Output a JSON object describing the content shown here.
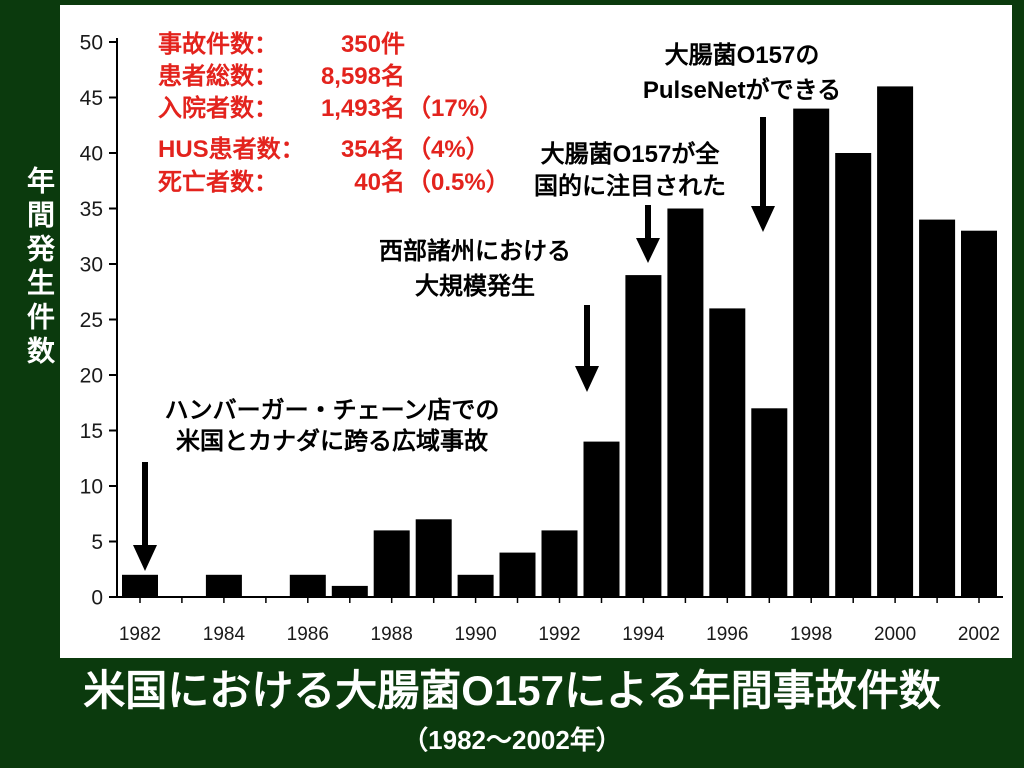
{
  "colors": {
    "slide_background": "#0b3a0d",
    "panel_background": "#ffffff",
    "slide_text": "#ffffff",
    "stats_text": "#e3231d",
    "annotation_text": "#000000",
    "bars": "#000000"
  },
  "chart_data": {
    "type": "bar",
    "title": "米国における大腸菌O157による年間事故件数",
    "subtitle": "（1982〜2002年）",
    "ylabel": "年間発生件数",
    "x": [
      1982,
      1983,
      1984,
      1985,
      1986,
      1987,
      1988,
      1989,
      1990,
      1991,
      1992,
      1993,
      1994,
      1995,
      1996,
      1997,
      1998,
      1999,
      2000,
      2001,
      2002
    ],
    "values": [
      2,
      0,
      2,
      0,
      2,
      1,
      6,
      7,
      2,
      4,
      6,
      14,
      29,
      35,
      26,
      17,
      44,
      40,
      46,
      34,
      33
    ],
    "ylim": [
      0,
      50
    ],
    "yticks": [
      0,
      5,
      10,
      15,
      20,
      25,
      30,
      35,
      40,
      45,
      50
    ],
    "xticks": [
      1982,
      1984,
      1986,
      1988,
      1990,
      1992,
      1994,
      1996,
      1998,
      2000,
      2002
    ],
    "grid": false,
    "summary": [
      {
        "label": "事故件数：",
        "value": "350件"
      },
      {
        "label": "患者総数：",
        "value": "8,598名"
      },
      {
        "label": "入院者数：",
        "value": "1,493名",
        "pct": "（17%）"
      },
      {
        "label": "HUS患者数：",
        "value": "354名",
        "pct": "（4%）"
      },
      {
        "label": "死亡者数：",
        "value": "40名",
        "pct": "（0.5%）"
      }
    ],
    "annotations": [
      {
        "lines": [
          "ハンバーガー・チェーン店での",
          "米国とカナダに跨る広域事故"
        ]
      },
      {
        "lines": [
          "西部諸州における",
          "大規模発生"
        ]
      },
      {
        "lines": [
          "大腸菌O157が全",
          "国的に注目された"
        ]
      },
      {
        "lines": [
          "大腸菌O157の",
          "PulseNetができる"
        ]
      }
    ]
  }
}
